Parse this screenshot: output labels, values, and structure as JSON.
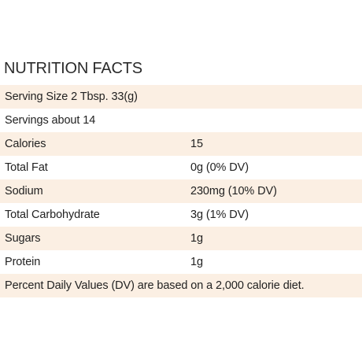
{
  "title": "NUTRITION FACTS",
  "rows": [
    {
      "label": "Serving Size 2 Tbsp. 33(g)",
      "value": "",
      "shaded": true,
      "full": true
    },
    {
      "label": "Servings about 14",
      "value": "",
      "shaded": false,
      "full": true
    },
    {
      "label": "Calories",
      "value": "15",
      "shaded": true,
      "full": false
    },
    {
      "label": "Total Fat",
      "value": "0g (0% DV)",
      "shaded": false,
      "full": false
    },
    {
      "label": "Sodium",
      "value": "230mg (10% DV)",
      "shaded": true,
      "full": false
    },
    {
      "label": "Total Carbohydrate",
      "value": "3g (1% DV)",
      "shaded": false,
      "full": false
    },
    {
      "label": "Sugars",
      "value": "1g",
      "shaded": true,
      "full": false
    },
    {
      "label": "Protein",
      "value": "1g",
      "shaded": false,
      "full": false
    },
    {
      "label": "Percent Daily Values (DV) are based on a 2,000 calorie diet.",
      "value": "",
      "shaded": true,
      "full": true
    }
  ],
  "colors": {
    "row_shade": "#fbefe3",
    "text": "#222222"
  }
}
